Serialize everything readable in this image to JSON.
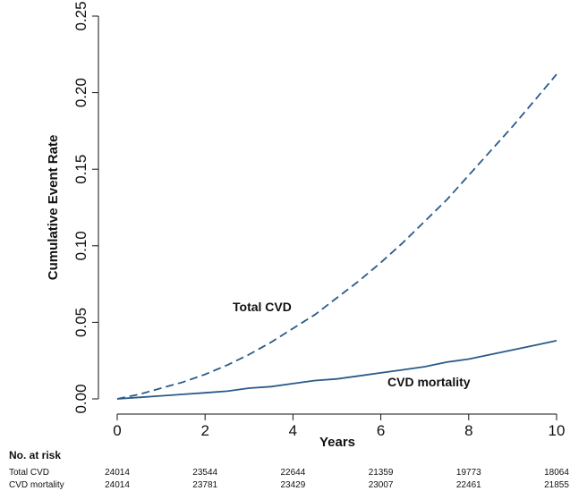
{
  "chart_data": {
    "type": "line",
    "xlabel": "Years",
    "ylabel": "Cumulative Event Rate",
    "xlim": [
      0,
      10
    ],
    "ylim": [
      0,
      0.25
    ],
    "x_ticks": [
      0,
      2,
      4,
      6,
      8,
      10
    ],
    "y_ticks": [
      "0.00",
      "0.05",
      "0.10",
      "0.15",
      "0.20",
      "0.25"
    ],
    "grid": false,
    "line_color": "#2a5a8a",
    "series": [
      {
        "name": "Total CVD",
        "line_style": "dashed",
        "x": [
          0,
          0.5,
          1,
          1.5,
          2,
          2.5,
          3,
          3.5,
          4,
          4.5,
          5,
          5.5,
          6,
          6.5,
          7,
          7.5,
          8,
          8.5,
          9,
          9.5,
          10
        ],
        "y": [
          0.0,
          0.003,
          0.007,
          0.011,
          0.016,
          0.022,
          0.029,
          0.037,
          0.046,
          0.055,
          0.066,
          0.077,
          0.089,
          0.102,
          0.116,
          0.13,
          0.146,
          0.162,
          0.178,
          0.195,
          0.212
        ]
      },
      {
        "name": "CVD mortality",
        "line_style": "solid",
        "x": [
          0,
          0.5,
          1,
          1.5,
          2,
          2.5,
          3,
          3.5,
          4,
          4.5,
          5,
          5.5,
          6,
          6.5,
          7,
          7.5,
          8,
          8.5,
          9,
          9.5,
          10
        ],
        "y": [
          0.0,
          0.001,
          0.002,
          0.003,
          0.004,
          0.005,
          0.007,
          0.008,
          0.01,
          0.012,
          0.013,
          0.015,
          0.017,
          0.019,
          0.021,
          0.024,
          0.026,
          0.029,
          0.032,
          0.035,
          0.038
        ]
      }
    ],
    "annotations": [
      {
        "text": "Total CVD"
      },
      {
        "text": "CVD mortality"
      }
    ]
  },
  "risk_table": {
    "title": "No. at risk",
    "rows": [
      {
        "label": "Total CVD",
        "values": [
          "24014",
          "23544",
          "22644",
          "21359",
          "19773",
          "18064"
        ]
      },
      {
        "label": "CVD mortality",
        "values": [
          "24014",
          "23781",
          "23429",
          "23007",
          "22461",
          "21855"
        ]
      }
    ]
  }
}
